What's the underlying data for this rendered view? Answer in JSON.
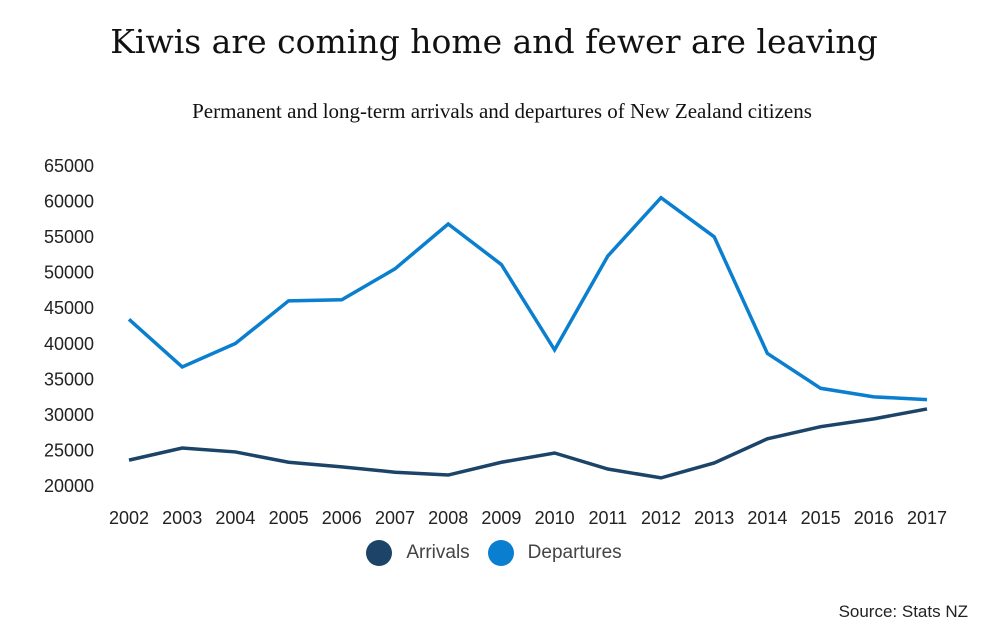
{
  "chart_data": {
    "type": "line",
    "title": "Kiwis are coming home and fewer are leaving",
    "subtitle": "Permanent and long-term arrivals and departures of New Zealand citizens",
    "xlabel": "",
    "ylabel": "",
    "x": [
      "2002",
      "2003",
      "2004",
      "2005",
      "2006",
      "2007",
      "2008",
      "2009",
      "2010",
      "2011",
      "2012",
      "2013",
      "2014",
      "2015",
      "2016",
      "2017"
    ],
    "yticks": [
      "20000",
      "25000",
      "30000",
      "35000",
      "40000",
      "45000",
      "50000",
      "55000",
      "60000",
      "65000"
    ],
    "ylim": [
      20000,
      65000
    ],
    "grid": false,
    "legend_position": "bottom",
    "series": [
      {
        "name": "Arrivals",
        "color": "#1b4468",
        "values": [
          23500,
          25200,
          24650,
          23200,
          22550,
          21800,
          21400,
          23200,
          24500,
          22250,
          21000,
          23100,
          26500,
          28200,
          29300,
          30700
        ]
      },
      {
        "name": "Departures",
        "color": "#0a7fcf",
        "values": [
          43300,
          36600,
          39900,
          45900,
          46050,
          50400,
          56700,
          51000,
          39000,
          52200,
          60400,
          54900,
          38500,
          33600,
          32400,
          32000
        ]
      }
    ],
    "source": "Source: Stats NZ"
  }
}
